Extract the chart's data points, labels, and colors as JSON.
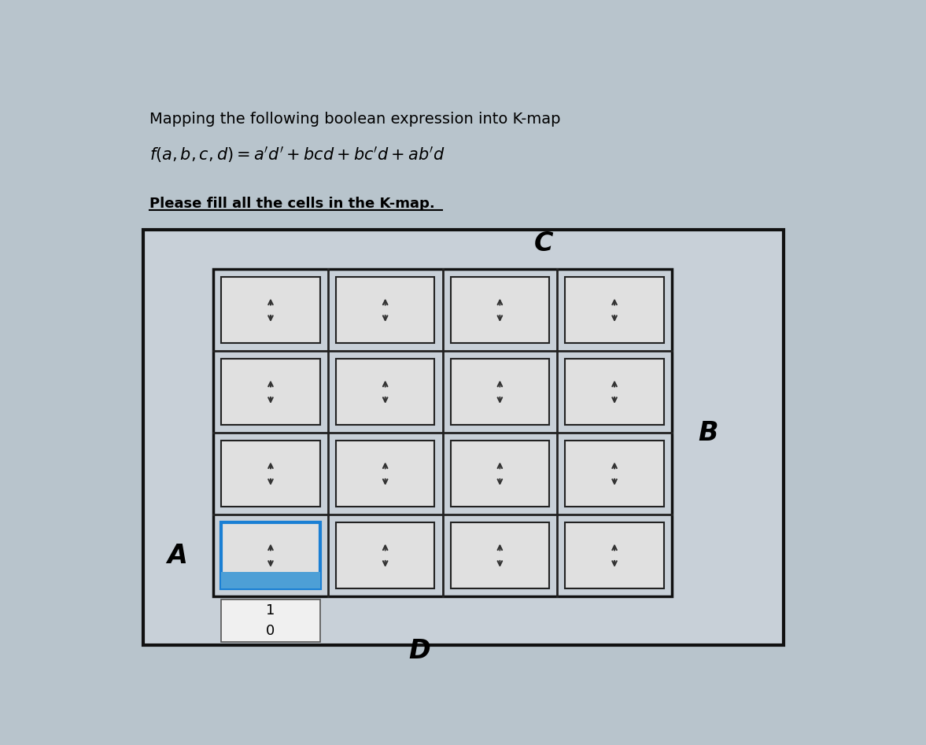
{
  "title_line1": "Mapping the following boolean expression into K-map",
  "subtitle": "Please fill all the cells in the K-map.",
  "grid_rows": 4,
  "grid_cols": 4,
  "label_C": "C",
  "label_B": "B",
  "label_A": "A",
  "label_D": "D",
  "bg_color": "#c8d0d8",
  "cell_inner_bg": "#e0e0e0",
  "cell_border": "#222222",
  "grid_border": "#111111",
  "highlight_cell_row": 0,
  "highlight_cell_col": 0,
  "highlight_border_color": "#1a7fd4",
  "highlight_fill_color": "#4d9fd6",
  "dropdown_color": "#333333",
  "digit_1": "1",
  "digit_0": "0",
  "outer_bg": "#b8c4cc"
}
